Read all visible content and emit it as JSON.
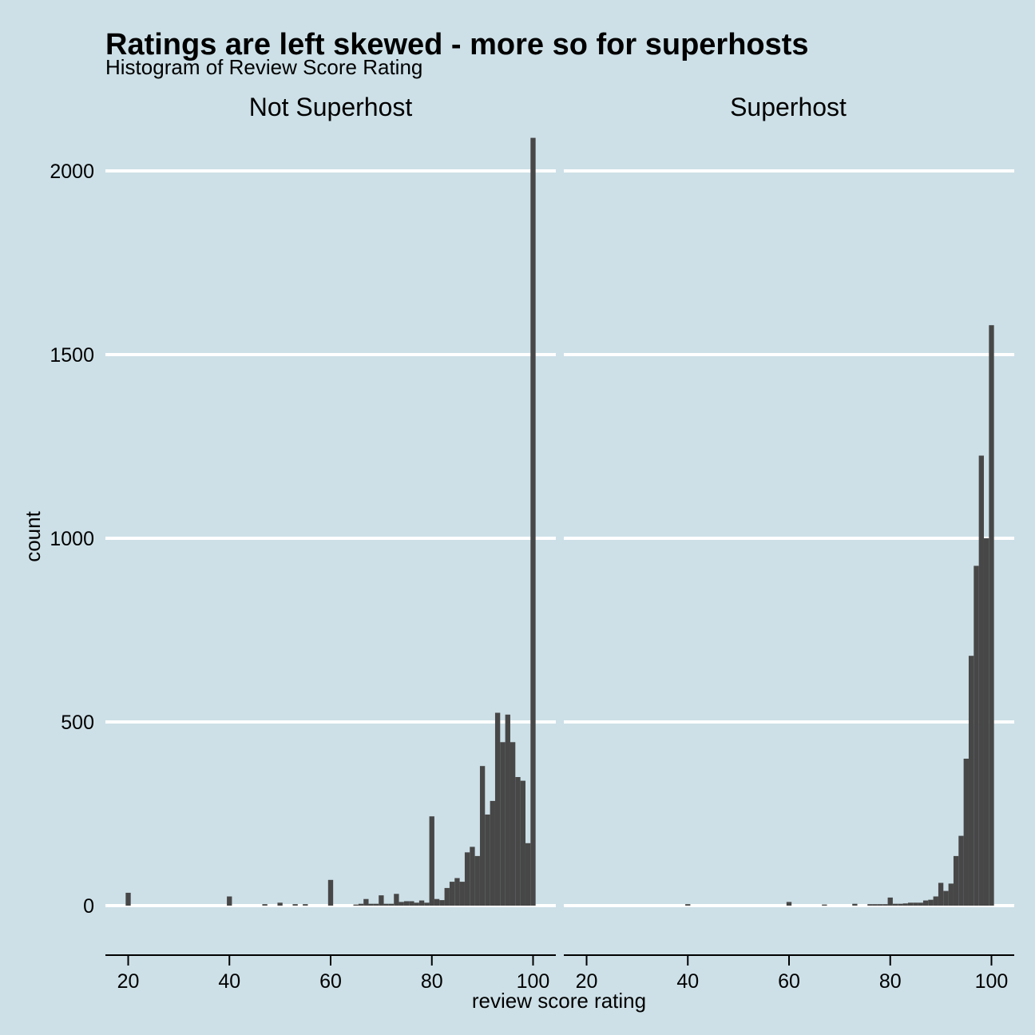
{
  "chart_data": {
    "type": "bar",
    "title": "Ratings are left skewed - more so for superhosts",
    "subtitle": "Histogram of Review Score Rating",
    "xlabel": "review score rating",
    "ylabel": "count",
    "xlim": [
      15.5,
      104.5
    ],
    "ylim": [
      -100,
      2100
    ],
    "xticks": [
      "20",
      "40",
      "60",
      "80",
      "100"
    ],
    "yticks": [
      "0",
      "500",
      "1000",
      "1500",
      "2000"
    ],
    "grid": "horizontal",
    "bin_width": 1,
    "facets": [
      {
        "label": "Not Superhost",
        "x": [
          20,
          40,
          47,
          50,
          53,
          55,
          60,
          65,
          66,
          67,
          68,
          69,
          70,
          71,
          72,
          73,
          74,
          75,
          76,
          77,
          78,
          79,
          80,
          81,
          82,
          83,
          84,
          85,
          86,
          87,
          88,
          89,
          90,
          91,
          92,
          93,
          94,
          95,
          96,
          97,
          98,
          99,
          100
        ],
        "values": [
          35,
          25,
          4,
          8,
          4,
          4,
          70,
          3,
          5,
          18,
          5,
          5,
          28,
          5,
          5,
          32,
          10,
          12,
          12,
          8,
          14,
          8,
          243,
          18,
          15,
          48,
          65,
          75,
          65,
          145,
          160,
          135,
          380,
          248,
          285,
          525,
          445,
          520,
          445,
          350,
          340,
          170,
          2090
        ]
      },
      {
        "label": "Superhost",
        "x": [
          40,
          60,
          67,
          73,
          76,
          77,
          78,
          79,
          80,
          81,
          82,
          83,
          84,
          85,
          86,
          87,
          88,
          89,
          90,
          91,
          92,
          93,
          94,
          95,
          96,
          97,
          98,
          99,
          100
        ],
        "values": [
          4,
          10,
          3,
          5,
          4,
          4,
          4,
          4,
          22,
          5,
          5,
          6,
          8,
          8,
          8,
          14,
          16,
          25,
          62,
          40,
          60,
          135,
          190,
          400,
          680,
          925,
          1225,
          1000,
          1580
        ]
      }
    ],
    "colors": {
      "background": "#cde0e7",
      "bar": "#474747",
      "grid": "#ffffff",
      "axis": "#000000"
    }
  }
}
